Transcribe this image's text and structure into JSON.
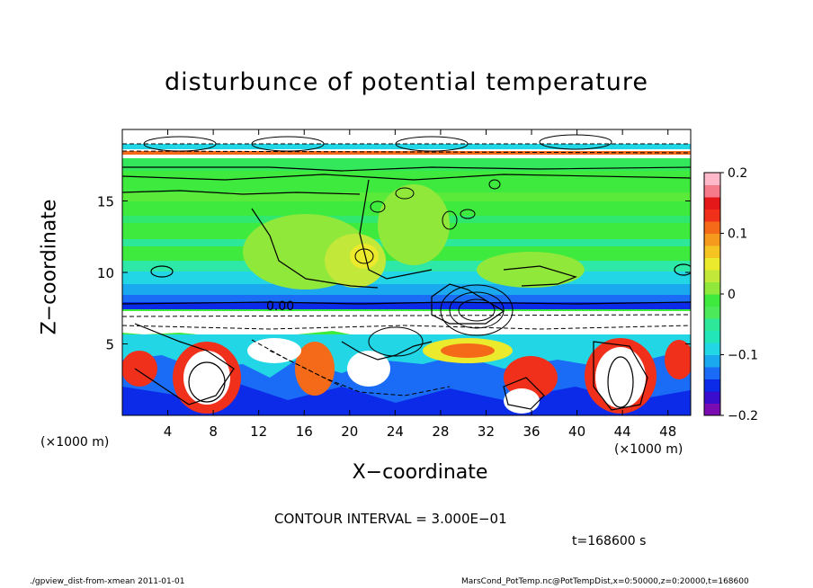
{
  "chart_data": {
    "type": "heatmap",
    "title": "disturbunce of potential temperature",
    "xlabel": "X−coordinate",
    "ylabel": "Z−coordinate",
    "x_unit_left": "(×1000 m)",
    "x_unit_right": "(×1000 m)",
    "x_ticks": [
      "4",
      "8",
      "12",
      "16",
      "20",
      "24",
      "28",
      "32",
      "36",
      "40",
      "44",
      "48"
    ],
    "y_ticks": [
      "5",
      "10",
      "15"
    ],
    "xlim": [
      0,
      50
    ],
    "ylim": [
      0,
      20
    ],
    "colorbar": {
      "range": [
        -0.2,
        0.2
      ],
      "tick_labels": [
        "0.2",
        "0.1",
        "0",
        "−0.1",
        "−0.2"
      ],
      "tick_values": [
        0.2,
        0.1,
        0,
        -0.1,
        -0.2
      ],
      "colors": [
        "#7a0bb0",
        "#3a0ccc",
        "#0b2be8",
        "#1a6bf5",
        "#1aa8ee",
        "#22d6e6",
        "#22e6b8",
        "#2ee89a",
        "#4cea5a",
        "#3dea3d",
        "#8fe83a",
        "#c2e83a",
        "#ecea2c",
        "#f5c423",
        "#f59a1c",
        "#f56a18",
        "#f0301a",
        "#e41818",
        "#f57a8a",
        "#ffb8c8"
      ]
    },
    "contour_label": "0.00",
    "contour_interval": "CONTOUR INTERVAL = 3.000E−01",
    "time": "t=168600 s"
  },
  "footer": {
    "left": "./gpview_dist-from-xmean  2011-01-01",
    "right": "MarsCond_PotTemp.nc@PotTempDist,x=0:50000,z=0:20000,t=168600"
  }
}
